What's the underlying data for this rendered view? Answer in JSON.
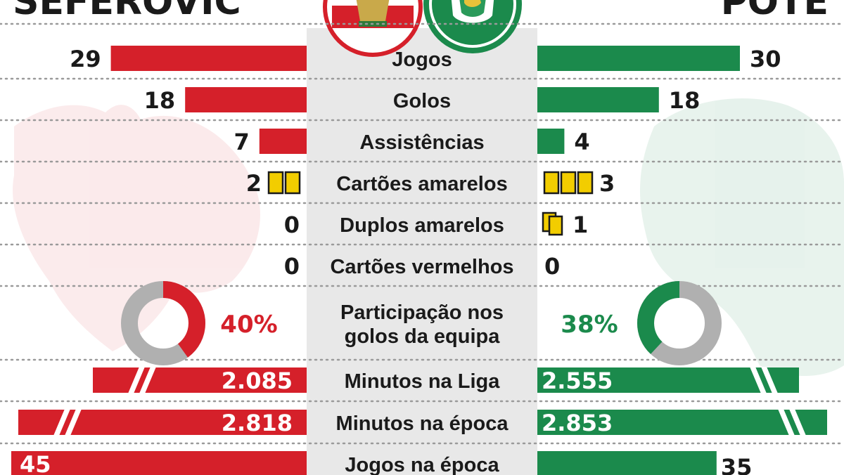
{
  "players": {
    "left": {
      "name": "SEFEROVIC",
      "color": "#d5202a",
      "crest": "benfica-crest-icon"
    },
    "right": {
      "name": "POTE",
      "color": "#1b8a4c",
      "crest": "sporting-crest-icon"
    }
  },
  "chart_data": {
    "type": "bar",
    "orientation": "horizontal-butterfly",
    "title": "",
    "categories": [
      "Jogos",
      "Golos",
      "Assistências",
      "Cartões amarelos",
      "Duplos amarelos",
      "Cartões vermelhos",
      "Participação nos golos da equipa",
      "Minutos na Liga",
      "Minutos na época",
      "Jogos na época"
    ],
    "series": [
      {
        "name": "SEFEROVIC",
        "color": "#d5202a",
        "values": [
          29,
          18,
          7,
          2,
          0,
          0,
          40,
          2085,
          2818,
          45
        ],
        "labels": [
          "29",
          "18",
          "7",
          "2",
          "0",
          "0",
          "40%",
          "2.085",
          "2.818",
          "45"
        ]
      },
      {
        "name": "POTE",
        "color": "#1b8a4c",
        "values": [
          30,
          18,
          4,
          3,
          1,
          0,
          38,
          2555,
          2853,
          35
        ],
        "labels": [
          "30",
          "18",
          "4",
          "3",
          "1",
          "0",
          "38%",
          "2.555",
          "2.853",
          "35"
        ]
      }
    ],
    "marks": {
      "Jogos": "bar",
      "Golos": "bar",
      "Assistências": "bar",
      "Cartões amarelos": "yellow-card-icons",
      "Duplos amarelos": "double-yellow-card-icons",
      "Cartões vermelhos": "none",
      "Participação nos golos da equipa": "donut",
      "Minutos na Liga": "broken-bar",
      "Minutos na época": "broken-bar",
      "Jogos na época": "bar"
    },
    "category_lines": [
      [
        "Jogos"
      ],
      [
        "Golos"
      ],
      [
        "Assistências"
      ],
      [
        "Cartões amarelos"
      ],
      [
        "Duplos amarelos"
      ],
      [
        "Cartões vermelhos"
      ],
      [
        "Participação nos",
        "golos da equipa"
      ],
      [
        "Minutos na Liga"
      ],
      [
        "Minutos na época"
      ],
      [
        "Jogos na época"
      ]
    ],
    "center_band_color": "#e8e8e8",
    "yellow_card_color": "#f2cd00",
    "donut_rest_color": "#b0b0b0",
    "grid": "dotted-row-separators",
    "legend": "none"
  }
}
